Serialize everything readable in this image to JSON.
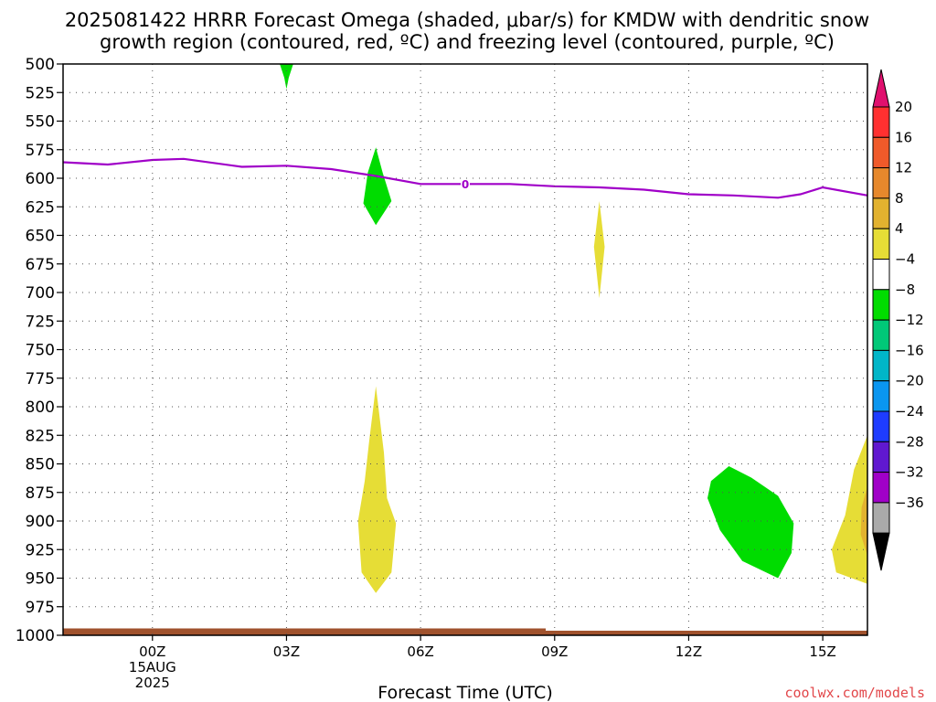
{
  "chart_data": {
    "type": "heatmap",
    "title_lines": [
      "2025081422 HRRR Forecast Omega (shaded, μbar/s) for KMDW with dendritic snow",
      "growth region (contoured, red, ºC) and freezing level (contoured, purple, ºC)"
    ],
    "xlabel": "Forecast Time (UTC)",
    "credit": "coolwx.com/models",
    "y_ticks": [
      500,
      525,
      550,
      575,
      600,
      625,
      650,
      675,
      700,
      725,
      750,
      775,
      800,
      825,
      850,
      875,
      900,
      925,
      950,
      975,
      1000
    ],
    "ylim": [
      500,
      1000
    ],
    "xlim": [
      -2,
      16
    ],
    "x_ticks": [
      {
        "x": 0,
        "label": "00Z",
        "sub": [
          "15AUG",
          "2025"
        ]
      },
      {
        "x": 3,
        "label": "03Z",
        "sub": []
      },
      {
        "x": 6,
        "label": "06Z",
        "sub": []
      },
      {
        "x": 9,
        "label": "09Z",
        "sub": []
      },
      {
        "x": 12,
        "label": "12Z",
        "sub": []
      },
      {
        "x": 15,
        "label": "15Z",
        "sub": []
      }
    ],
    "colorbar": {
      "levels": [
        {
          "label": "20",
          "color": "#ff3030"
        },
        {
          "label": "16",
          "color": "#f05a2a"
        },
        {
          "label": "12",
          "color": "#e6882c"
        },
        {
          "label": "8",
          "color": "#e2b22f"
        },
        {
          "label": "4",
          "color": "#e6dd36"
        },
        {
          "label": "−4",
          "color": "#ffffff"
        },
        {
          "label": "−8",
          "color": "#00dc00"
        },
        {
          "label": "−12",
          "color": "#00c878"
        },
        {
          "label": "−16",
          "color": "#00b6c8"
        },
        {
          "label": "−20",
          "color": "#0a96f0"
        },
        {
          "label": "−24",
          "color": "#1e3cff"
        },
        {
          "label": "−28",
          "color": "#6018d0"
        },
        {
          "label": "−32",
          "color": "#a000c8"
        },
        {
          "label": "−36",
          "color": "#aaaaaa"
        }
      ],
      "top_arrow_color": "#e0106e",
      "bottom_arrow_color": "#000000"
    },
    "freezing_level": {
      "color": "#a000c8",
      "label": "0",
      "label_at": {
        "x": 7.0,
        "p": 605
      },
      "points": [
        {
          "x": -2,
          "p": 586
        },
        {
          "x": -1,
          "p": 588
        },
        {
          "x": 0,
          "p": 584
        },
        {
          "x": 0.7,
          "p": 583
        },
        {
          "x": 2,
          "p": 590
        },
        {
          "x": 3,
          "p": 589
        },
        {
          "x": 4,
          "p": 592
        },
        {
          "x": 5,
          "p": 598
        },
        {
          "x": 6,
          "p": 605
        },
        {
          "x": 7,
          "p": 605
        },
        {
          "x": 8,
          "p": 605
        },
        {
          "x": 9,
          "p": 607
        },
        {
          "x": 10,
          "p": 608
        },
        {
          "x": 11,
          "p": 610
        },
        {
          "x": 12,
          "p": 614
        },
        {
          "x": 13,
          "p": 615
        },
        {
          "x": 14,
          "p": 617
        },
        {
          "x": 14.5,
          "p": 614
        },
        {
          "x": 15,
          "p": 608
        },
        {
          "x": 16,
          "p": 615
        }
      ]
    },
    "omega_regions": [
      {
        "name": "green-top-03z",
        "color": "#00dc00",
        "points": [
          {
            "x": 2.85,
            "p": 500
          },
          {
            "x": 3.15,
            "p": 500
          },
          {
            "x": 3.05,
            "p": 512
          },
          {
            "x": 3.0,
            "p": 522
          },
          {
            "x": 2.95,
            "p": 512
          }
        ]
      },
      {
        "name": "green-05z",
        "color": "#00dc00",
        "points": [
          {
            "x": 5.0,
            "p": 573
          },
          {
            "x": 5.15,
            "p": 595
          },
          {
            "x": 5.35,
            "p": 620
          },
          {
            "x": 5.0,
            "p": 641
          },
          {
            "x": 4.72,
            "p": 622
          },
          {
            "x": 4.82,
            "p": 595
          }
        ]
      },
      {
        "name": "yellow-10z",
        "color": "#e6dd36",
        "points": [
          {
            "x": 10.0,
            "p": 620
          },
          {
            "x": 10.12,
            "p": 660
          },
          {
            "x": 10.0,
            "p": 705
          },
          {
            "x": 9.88,
            "p": 660
          }
        ]
      },
      {
        "name": "yellow-05z-low",
        "color": "#e6dd36",
        "points": [
          {
            "x": 5.0,
            "p": 782
          },
          {
            "x": 5.18,
            "p": 840
          },
          {
            "x": 5.25,
            "p": 880
          },
          {
            "x": 5.45,
            "p": 902
          },
          {
            "x": 5.35,
            "p": 945
          },
          {
            "x": 5.0,
            "p": 963
          },
          {
            "x": 4.68,
            "p": 945
          },
          {
            "x": 4.6,
            "p": 900
          },
          {
            "x": 4.75,
            "p": 865
          },
          {
            "x": 4.85,
            "p": 830
          }
        ]
      },
      {
        "name": "green-13z-low",
        "color": "#00dc00",
        "points": [
          {
            "x": 12.5,
            "p": 865
          },
          {
            "x": 12.9,
            "p": 852
          },
          {
            "x": 13.4,
            "p": 862
          },
          {
            "x": 14.0,
            "p": 878
          },
          {
            "x": 14.35,
            "p": 902
          },
          {
            "x": 14.3,
            "p": 928
          },
          {
            "x": 14.0,
            "p": 950
          },
          {
            "x": 13.2,
            "p": 935
          },
          {
            "x": 12.7,
            "p": 908
          },
          {
            "x": 12.42,
            "p": 880
          }
        ]
      },
      {
        "name": "yellow-15z-low",
        "color": "#e6dd36",
        "points": [
          {
            "x": 16.0,
            "p": 825
          },
          {
            "x": 16.0,
            "p": 955
          },
          {
            "x": 15.3,
            "p": 945
          },
          {
            "x": 15.2,
            "p": 925
          },
          {
            "x": 15.5,
            "p": 895
          },
          {
            "x": 15.7,
            "p": 855
          }
        ]
      },
      {
        "name": "orange-15z-edge",
        "color": "#e2b22f",
        "points": [
          {
            "x": 16.0,
            "p": 870
          },
          {
            "x": 16.0,
            "p": 930
          },
          {
            "x": 15.85,
            "p": 912
          },
          {
            "x": 15.87,
            "p": 888
          }
        ]
      }
    ],
    "ground": {
      "color": "#a0522d",
      "p_top": 994,
      "x_step_at": 8.8,
      "p_top_after": 996
    }
  }
}
